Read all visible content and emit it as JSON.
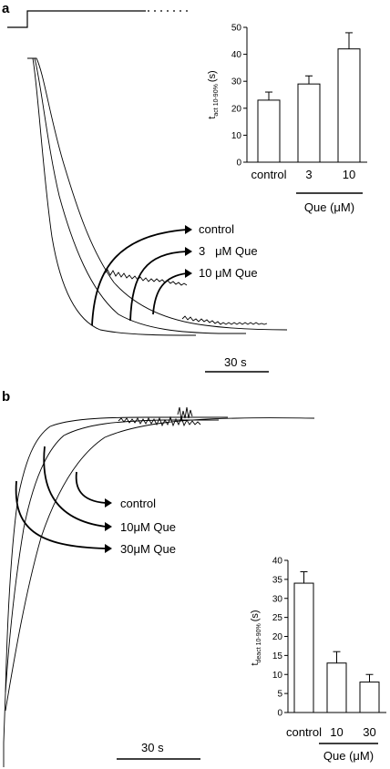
{
  "panels": [
    {
      "label": "a",
      "trace_labels": [
        "control",
        "3   μM Que",
        "10 μM Que"
      ],
      "scale_bar": "30 s"
    },
    {
      "label": "b",
      "trace_labels": [
        "control",
        "10μM Que",
        "30μM Que"
      ],
      "scale_bar": "30 s"
    }
  ],
  "chart_data": [
    {
      "type": "bar",
      "panel": "a",
      "ylabel_main": "t",
      "ylabel_sub": "act 10-90%",
      "ylabel_unit": "(s)",
      "categories": [
        "control",
        "3",
        "10"
      ],
      "values": [
        23,
        29,
        42
      ],
      "errors": [
        3,
        3,
        6
      ],
      "ylim": [
        0,
        50
      ],
      "yticks": [
        0,
        10,
        20,
        30,
        40,
        50
      ],
      "group_label": "Que (μM)",
      "grid": false
    },
    {
      "type": "bar",
      "panel": "b",
      "ylabel_main": "t",
      "ylabel_sub": "deact 10-90%",
      "ylabel_unit": "(s)",
      "categories": [
        "control",
        "10",
        "30"
      ],
      "values": [
        34,
        13,
        8
      ],
      "errors": [
        3,
        3,
        2
      ],
      "ylim": [
        0,
        40
      ],
      "yticks": [
        0,
        5,
        10,
        15,
        20,
        25,
        30,
        35,
        40
      ],
      "group_label": "Que (μM)",
      "grid": false
    }
  ]
}
